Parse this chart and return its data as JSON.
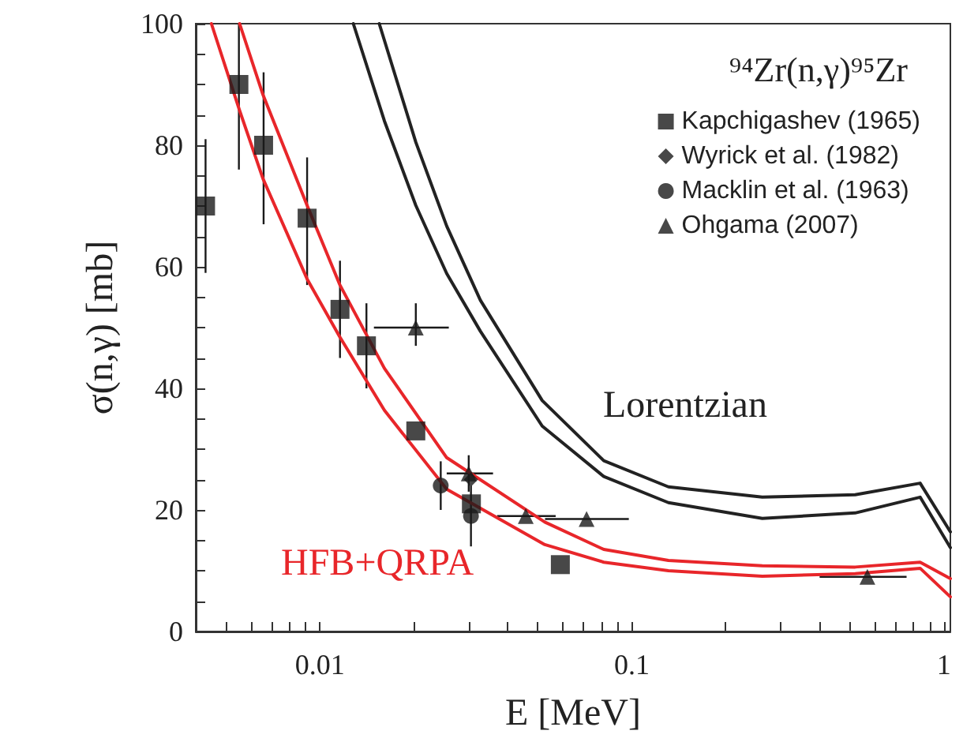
{
  "chart_data": {
    "type": "scatter",
    "title": "⁹⁴Zr(n,γ)⁹⁵Zr",
    "xlabel": "E [MeV]",
    "ylabel": "σ(n,γ) [mb]",
    "log": "x",
    "xlim": [
      0.004,
      1.05
    ],
    "xticks": [
      {
        "value": 0.005,
        "label": null
      },
      {
        "value": 0.006,
        "label": null
      },
      {
        "value": 0.007,
        "label": null
      },
      {
        "value": 0.008,
        "label": null
      },
      {
        "value": 0.009,
        "label": null
      },
      0.01,
      {
        "value": 0.02,
        "label": null
      },
      {
        "value": 0.03,
        "label": null
      },
      {
        "value": 0.04,
        "label": null
      },
      {
        "value": 0.05,
        "label": null
      },
      {
        "value": 0.06,
        "label": null
      },
      {
        "value": 0.07,
        "label": null
      },
      {
        "value": 0.08,
        "label": null
      },
      {
        "value": 0.09,
        "label": null
      },
      0.1,
      {
        "value": 0.2,
        "label": null
      },
      {
        "value": 0.3,
        "label": null
      },
      {
        "value": 0.4,
        "label": null
      },
      {
        "value": 0.5,
        "label": null
      },
      {
        "value": 0.6,
        "label": null
      },
      {
        "value": 0.7,
        "label": null
      },
      {
        "value": 0.8,
        "label": null
      },
      {
        "value": 0.9,
        "label": null
      },
      1
    ],
    "ylim": [
      0,
      100
    ],
    "yticks": [
      0,
      {
        "value": 5,
        "label": null
      },
      {
        "value": 10,
        "label": null
      },
      {
        "value": 15,
        "label": null
      },
      20,
      {
        "value": 25,
        "label": null
      },
      {
        "value": 30,
        "label": null
      },
      {
        "value": 35,
        "label": null
      },
      40,
      {
        "value": 45,
        "label": null
      },
      {
        "value": 50,
        "label": null
      },
      {
        "value": 55,
        "label": null
      },
      60,
      {
        "value": 65,
        "label": null
      },
      {
        "value": 70,
        "label": null
      },
      {
        "value": 75,
        "label": null
      },
      80,
      {
        "value": 85,
        "label": null
      },
      {
        "value": 90,
        "label": null
      },
      {
        "value": 95,
        "label": null
      },
      100
    ],
    "grid": false,
    "legend": "top right",
    "series": [
      {
        "name": "Kapchigashev (1965)",
        "marker": "square",
        "color": "#1a1a1a",
        "x": [
          0.0043,
          0.0055,
          0.0066,
          0.0091,
          0.0116,
          0.0141,
          0.0203,
          0.0306,
          0.059
        ],
        "values": [
          70,
          90,
          80,
          68,
          53,
          47,
          33,
          21,
          11
        ],
        "errors": [
          [
            59,
            81
          ],
          [
            76,
            100
          ],
          [
            67,
            92
          ],
          [
            57,
            78
          ],
          [
            45,
            61
          ],
          [
            40,
            54
          ],
          null,
          null,
          null
        ]
      },
      {
        "name": "Wyrick et al. (1982)",
        "marker": "diamond",
        "color": "#1a1a1a",
        "x": [
          0.0305
        ],
        "values": [
          25
        ]
      },
      {
        "name": "Macklin et al. (1963)",
        "marker": "circle",
        "color": "#1a1a1a",
        "x": [
          0.0244,
          0.0305
        ],
        "values": [
          24,
          19
        ],
        "errors": [
          [
            20,
            28
          ],
          [
            14,
            24
          ]
        ]
      },
      {
        "name": "Ohgama (2007)",
        "marker": "triangle",
        "color": "#1a1a1a",
        "x": [
          0.0203,
          0.03,
          0.0457,
          0.0716,
          0.569
        ],
        "values": [
          50,
          26,
          19,
          18.5,
          9
        ],
        "errors": [
          [
            47,
            54
          ],
          [
            23,
            29
          ],
          null,
          null,
          null
        ],
        "xerrors": [
          [
            0.0149,
            0.0259
          ],
          [
            0.0255,
            0.0359
          ],
          [
            0.037,
            0.057
          ],
          [
            0.0527,
            0.0978
          ],
          [
            0.4,
            0.76
          ]
        ]
      },
      {
        "name": "HFB+QRPA",
        "type": "line",
        "marker": "none",
        "color": "#e8262a",
        "x": [
          0.00449,
          0.00553,
          0.00657,
          0.0091,
          0.01157,
          0.0161,
          0.0255,
          0.0526,
          0.0813,
          0.131,
          0.262,
          0.52,
          0.84,
          1.05
        ],
        "values": [
          100,
          85.7,
          74.5,
          58,
          48.5,
          36.4,
          23.4,
          14.3,
          11.4,
          10,
          9.1,
          9.5,
          10.4,
          5.7
        ]
      },
      {
        "type": "line",
        "marker": "none",
        "color": "#e8262a",
        "x": [
          0.00553,
          0.00657,
          0.0091,
          0.01157,
          0.0161,
          0.0255,
          0.0526,
          0.0813,
          0.131,
          0.262,
          0.52,
          0.84,
          1.05
        ],
        "values": [
          100,
          88.3,
          70.1,
          57.1,
          43.3,
          28.6,
          18,
          13.5,
          11.7,
          10.8,
          10.6,
          11.4,
          8.7
        ]
      },
      {
        "name": "Lorentzian",
        "type": "line",
        "marker": "none",
        "color": "#222222",
        "x": [
          0.0155,
          0.0203,
          0.0255,
          0.0327,
          0.0516,
          0.0813,
          0.131,
          0.262,
          0.52,
          0.84,
          1.05
        ],
        "values": [
          100,
          80.5,
          66.7,
          54.5,
          38,
          28.1,
          23.8,
          22.1,
          22.5,
          24.4,
          16.4
        ]
      },
      {
        "type": "line",
        "marker": "none",
        "color": "#222222",
        "x": [
          0.0128,
          0.0161,
          0.0203,
          0.0255,
          0.0327,
          0.0516,
          0.0813,
          0.131,
          0.262,
          0.52,
          0.84,
          1.05
        ],
        "values": [
          100,
          84,
          70.1,
          58.9,
          49.4,
          33.8,
          25.5,
          21.2,
          18.6,
          19.5,
          22.1,
          13.8
        ]
      }
    ]
  }
}
